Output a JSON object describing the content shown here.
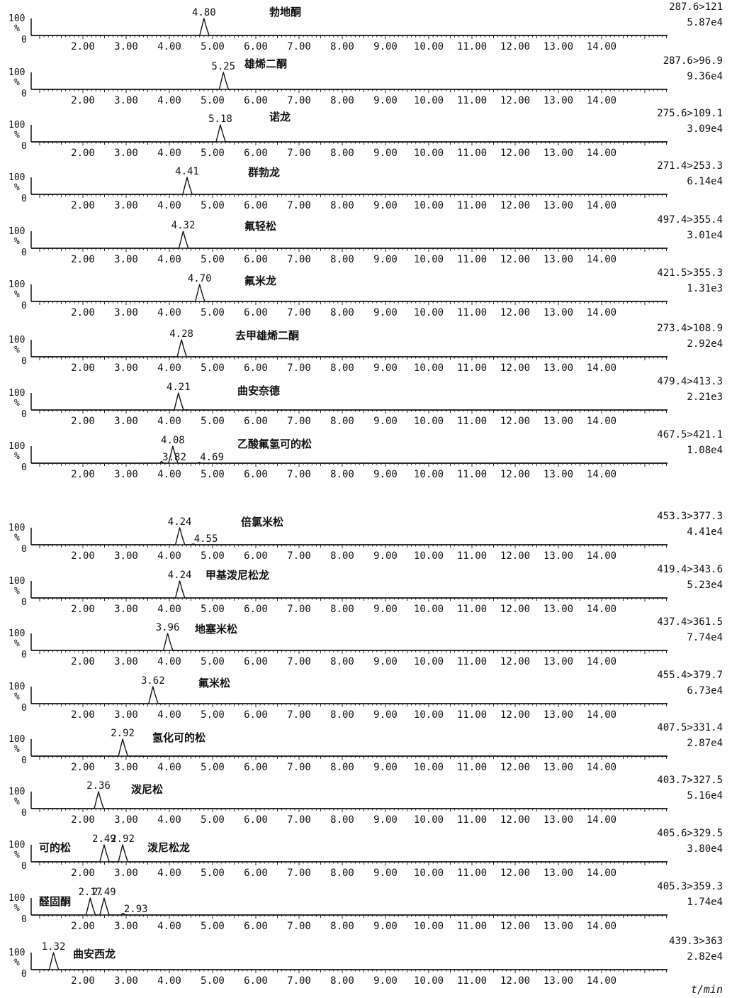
{
  "chart_data": {
    "type": "line",
    "xlabel": "t/min",
    "x_axis": {
      "min": 1.0,
      "max": 15.5,
      "tick_labels": [
        "2.00",
        "3.00",
        "4.00",
        "5.00",
        "6.00",
        "7.00",
        "8.00",
        "9.00",
        "10.00",
        "11.00",
        "12.00",
        "13.00",
        "14.00"
      ]
    },
    "y_axis": {
      "top_label": "100",
      "unit_label": "%",
      "bottom_label": "0"
    },
    "panels": [
      {
        "compound": "勃地酮",
        "mrm": "287.6>121",
        "intensity": "5.87e4",
        "peaks": [
          {
            "rt": 4.8,
            "label": "4.80",
            "height": 1.0
          }
        ]
      },
      {
        "compound": "雄烯二酮",
        "mrm": "287.6>96.9",
        "intensity": "9.36e4",
        "peaks": [
          {
            "rt": 5.25,
            "label": "5.25",
            "height": 1.0
          }
        ]
      },
      {
        "compound": "诺龙",
        "mrm": "275.6>109.1",
        "intensity": "3.09e4",
        "peaks": [
          {
            "rt": 5.18,
            "label": "5.18",
            "height": 1.0
          }
        ]
      },
      {
        "compound": "群勃龙",
        "mrm": "271.4>253.3",
        "intensity": "6.14e4",
        "peaks": [
          {
            "rt": 4.41,
            "label": "4.41",
            "height": 1.0
          }
        ]
      },
      {
        "compound": "氟轻松",
        "mrm": "497.4>355.4",
        "intensity": "3.01e4",
        "peaks": [
          {
            "rt": 4.32,
            "label": "4.32",
            "height": 1.0
          }
        ]
      },
      {
        "compound": "氟米龙",
        "mrm": "421.5>355.3",
        "intensity": "1.31e3",
        "peaks": [
          {
            "rt": 4.7,
            "label": "4.70",
            "height": 1.0
          }
        ]
      },
      {
        "compound": "去甲雄烯二酮",
        "mrm": "273.4>108.9",
        "intensity": "2.92e4",
        "peaks": [
          {
            "rt": 4.28,
            "label": "4.28",
            "height": 1.0
          }
        ]
      },
      {
        "compound": "曲安奈德",
        "mrm": "479.4>413.3",
        "intensity": "2.21e3",
        "peaks": [
          {
            "rt": 4.21,
            "label": "4.21",
            "height": 1.0
          }
        ]
      },
      {
        "compound": "乙酸氟氢可的松",
        "mrm": "467.5>421.1",
        "intensity": "1.08e4",
        "peaks": [
          {
            "rt": 3.82,
            "label": "3.82",
            "height": 0.1
          },
          {
            "rt": 4.08,
            "label": "4.08",
            "height": 1.0
          },
          {
            "rt": 4.69,
            "label": "4.69",
            "height": 0.05
          }
        ]
      },
      {
        "compound": "倍氯米松",
        "mrm": "453.3>377.3",
        "intensity": "4.41e4",
        "peaks": [
          {
            "rt": 4.24,
            "label": "4.24",
            "height": 1.0
          },
          {
            "rt": 4.55,
            "label": "4.55",
            "height": 0.05
          }
        ]
      },
      {
        "compound": "甲基泼尼松龙",
        "mrm": "419.4>343.6",
        "intensity": "5.23e4",
        "peaks": [
          {
            "rt": 4.24,
            "label": "4.24",
            "height": 1.0
          }
        ]
      },
      {
        "compound": "地塞米松",
        "mrm": "437.4>361.5",
        "intensity": "7.74e4",
        "peaks": [
          {
            "rt": 3.96,
            "label": "3.96",
            "height": 1.0
          }
        ]
      },
      {
        "compound": "氟米松",
        "mrm": "455.4>379.7",
        "intensity": "6.73e4",
        "peaks": [
          {
            "rt": 3.62,
            "label": "3.62",
            "height": 1.0
          }
        ]
      },
      {
        "compound": "氢化可的松",
        "mrm": "407.5>331.4",
        "intensity": "2.87e4",
        "peaks": [
          {
            "rt": 2.92,
            "label": "2.92",
            "height": 1.0
          }
        ]
      },
      {
        "compound": "泼尼松",
        "mrm": "403.7>327.5",
        "intensity": "5.16e4",
        "peaks": [
          {
            "rt": 2.36,
            "label": "2.36",
            "height": 1.0
          }
        ]
      },
      {
        "compound": "可的松",
        "compound_2": "泼尼松龙",
        "mrm": "405.6>329.5",
        "intensity": "3.80e4",
        "peaks": [
          {
            "rt": 2.49,
            "label": "2.49",
            "height": 1.0
          },
          {
            "rt": 2.92,
            "label": "2.92",
            "height": 1.0
          }
        ]
      },
      {
        "compound": "醛固酮",
        "mrm": "405.3>359.3",
        "intensity": "1.74e4",
        "peaks": [
          {
            "rt": 2.17,
            "label": "2.17",
            "height": 1.0
          },
          {
            "rt": 2.49,
            "label": "2.49",
            "height": 1.0
          },
          {
            "rt": 2.93,
            "label": "2.93",
            "height": 0.1
          }
        ]
      },
      {
        "compound": "曲安西龙",
        "mrm": "439.3>363",
        "intensity": "2.82e4",
        "peaks": [
          {
            "rt": 1.32,
            "label": "1.32",
            "height": 1.0
          }
        ]
      }
    ]
  }
}
